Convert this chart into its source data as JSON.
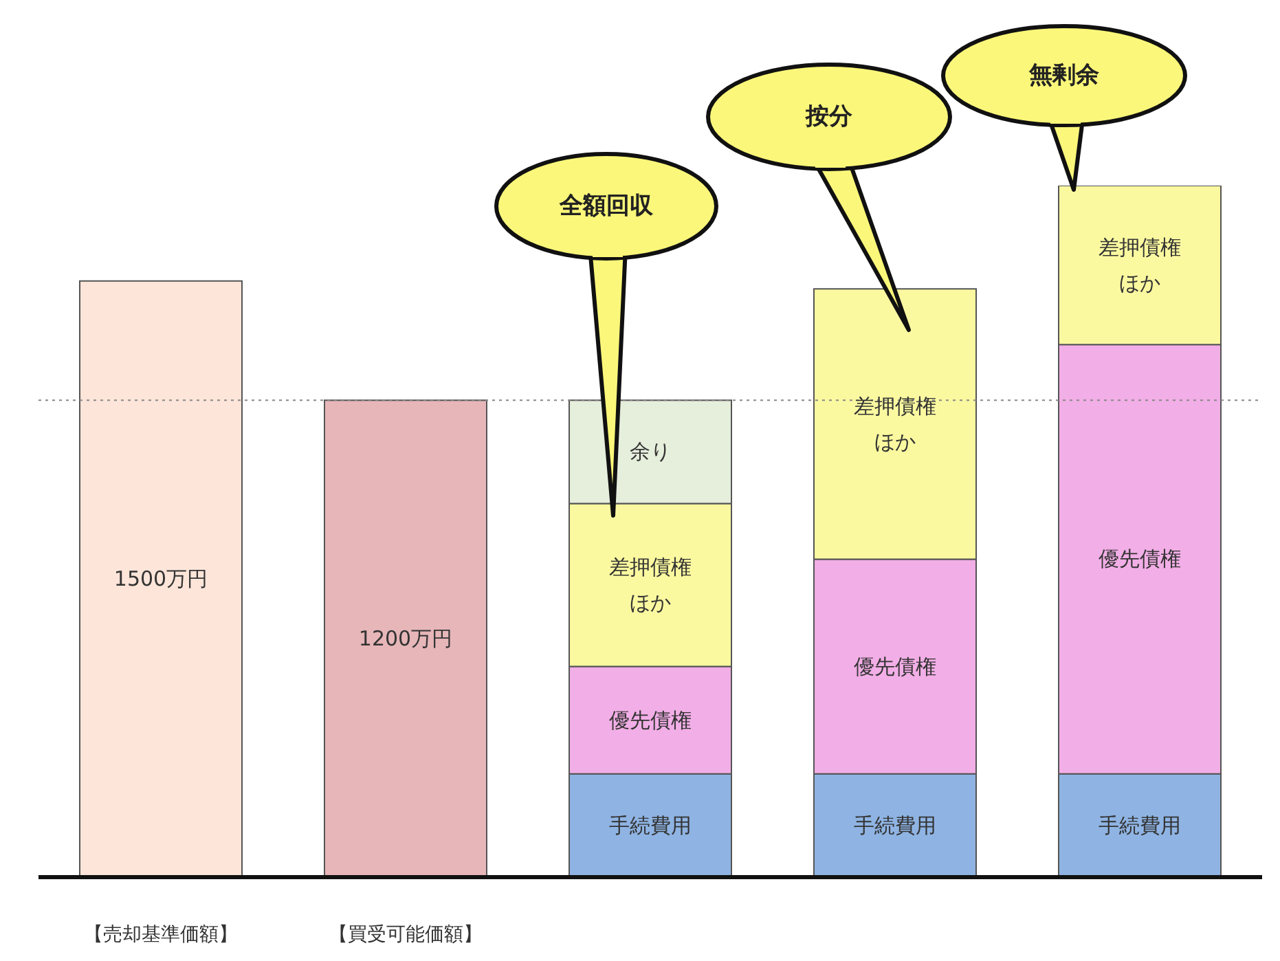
{
  "chart_data": {
    "type": "bar",
    "stacked": true,
    "ylim": [
      0,
      1740
    ],
    "categories": [
      "【売却基準価額】",
      "【買受可能価額】",
      null,
      null,
      null
    ],
    "series": [
      {
        "colors": [
          "#fde5d9",
          "#e6b6b8",
          null,
          null,
          null
        ],
        "values": [
          1500,
          1200,
          null,
          null,
          null
        ],
        "value_labels": [
          "1500万円",
          "1200万円",
          null,
          null,
          null
        ]
      },
      {
        "name": "手続費用",
        "color": "#8fb4e3",
        "values": [
          null,
          null,
          260,
          260,
          260
        ]
      },
      {
        "name": "優先債権",
        "color": "#f2aee6",
        "values": [
          null,
          null,
          270,
          540,
          1080
        ]
      },
      {
        "name": "差押債権ほか",
        "color": "#fbf9a0",
        "values": [
          null,
          null,
          410,
          680,
          400
        ]
      },
      {
        "name": "余り",
        "color": "#e6eedc",
        "values": [
          null,
          null,
          260,
          null,
          null
        ]
      }
    ],
    "ref_lines": [
      {
        "axis": "y",
        "value": 1200,
        "line_style": "dotted",
        "color": "#888888"
      }
    ],
    "annotations": [
      "全額回収",
      "按分",
      "無剰余"
    ]
  }
}
